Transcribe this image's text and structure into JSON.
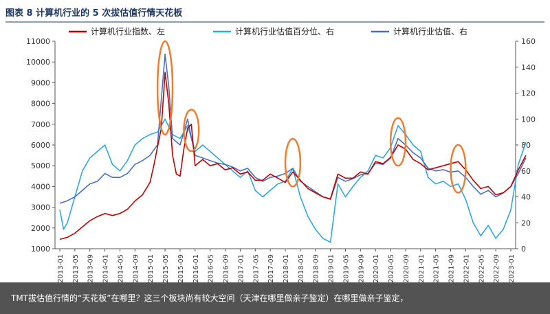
{
  "chart_data": {
    "type": "line",
    "title": "图表 8  计算机行业的 5 次拔估值行情天花板",
    "legend_placement": "top",
    "grid": false,
    "x": [
      "2013-01",
      "2013-05",
      "2013-09",
      "2014-01",
      "2014-05",
      "2014-09",
      "2015-01",
      "2015-05",
      "2015-09",
      "2016-01",
      "2016-05",
      "2016-09",
      "2017-01",
      "2017-05",
      "2017-09",
      "2018-01",
      "2018-05",
      "2018-09",
      "2019-01",
      "2019-05",
      "2019-09",
      "2020-01",
      "2020-05",
      "2020-09",
      "2021-01",
      "2021-05",
      "2021-09",
      "2022-01",
      "2022-05",
      "2022-09",
      "2023-01"
    ],
    "y_left": {
      "ticks": [
        1000,
        2000,
        3000,
        4000,
        5000,
        6000,
        7000,
        8000,
        9000,
        10000,
        11000
      ],
      "ylim": [
        1000,
        11000
      ]
    },
    "y_right": {
      "ticks": [
        0,
        20,
        40,
        60,
        80,
        100,
        120,
        140,
        160
      ],
      "ylim": [
        0,
        160
      ]
    },
    "series": [
      {
        "name": "计算机行业指数、左",
        "axis": "left",
        "color": "#c00000",
        "points": [
          [
            "2013-01",
            1450
          ],
          [
            "2013-03",
            1550
          ],
          [
            "2013-05",
            1750
          ],
          [
            "2013-07",
            2050
          ],
          [
            "2013-09",
            2350
          ],
          [
            "2013-11",
            2550
          ],
          [
            "2014-01",
            2700
          ],
          [
            "2014-03",
            2600
          ],
          [
            "2014-05",
            2700
          ],
          [
            "2014-07",
            2900
          ],
          [
            "2014-09",
            3300
          ],
          [
            "2014-11",
            3600
          ],
          [
            "2015-01",
            4200
          ],
          [
            "2015-02",
            5000
          ],
          [
            "2015-03",
            5900
          ],
          [
            "2015-04",
            6800
          ],
          [
            "2015-05",
            9500
          ],
          [
            "2015-06",
            8000
          ],
          [
            "2015-07",
            5500
          ],
          [
            "2015-08",
            4600
          ],
          [
            "2015-09",
            4500
          ],
          [
            "2015-10",
            5800
          ],
          [
            "2015-11",
            6800
          ],
          [
            "2015-12",
            7000
          ],
          [
            "2016-01",
            5000
          ],
          [
            "2016-03",
            5300
          ],
          [
            "2016-05",
            5000
          ],
          [
            "2016-07",
            5100
          ],
          [
            "2016-09",
            4800
          ],
          [
            "2016-11",
            4900
          ],
          [
            "2017-01",
            4600
          ],
          [
            "2017-03",
            4700
          ],
          [
            "2017-05",
            4300
          ],
          [
            "2017-07",
            4300
          ],
          [
            "2017-09",
            4600
          ],
          [
            "2017-11",
            4400
          ],
          [
            "2018-01",
            4200
          ],
          [
            "2018-03",
            4700
          ],
          [
            "2018-05",
            4300
          ],
          [
            "2018-07",
            3900
          ],
          [
            "2018-09",
            3700
          ],
          [
            "2018-11",
            3500
          ],
          [
            "2019-01",
            3400
          ],
          [
            "2019-03",
            4600
          ],
          [
            "2019-05",
            4400
          ],
          [
            "2019-07",
            4400
          ],
          [
            "2019-09",
            4700
          ],
          [
            "2019-11",
            4600
          ],
          [
            "2020-01",
            5200
          ],
          [
            "2020-03",
            5100
          ],
          [
            "2020-05",
            5400
          ],
          [
            "2020-07",
            6000
          ],
          [
            "2020-09",
            5800
          ],
          [
            "2020-11",
            5300
          ],
          [
            "2021-01",
            5100
          ],
          [
            "2021-03",
            4800
          ],
          [
            "2021-05",
            4900
          ],
          [
            "2021-07",
            5000
          ],
          [
            "2021-09",
            5100
          ],
          [
            "2021-11",
            5200
          ],
          [
            "2022-01",
            4800
          ],
          [
            "2022-03",
            4300
          ],
          [
            "2022-05",
            3900
          ],
          [
            "2022-07",
            4000
          ],
          [
            "2022-09",
            3600
          ],
          [
            "2022-11",
            3700
          ],
          [
            "2023-01",
            4000
          ],
          [
            "2023-03",
            4800
          ],
          [
            "2023-05",
            5500
          ]
        ]
      },
      {
        "name": "计算机行业估值百分位、右",
        "axis": "right",
        "color": "#2ea7e0",
        "points": [
          [
            "2013-01",
            30
          ],
          [
            "2013-02",
            15
          ],
          [
            "2013-03",
            20
          ],
          [
            "2013-05",
            40
          ],
          [
            "2013-07",
            60
          ],
          [
            "2013-09",
            70
          ],
          [
            "2013-11",
            75
          ],
          [
            "2014-01",
            80
          ],
          [
            "2014-03",
            65
          ],
          [
            "2014-05",
            60
          ],
          [
            "2014-07",
            68
          ],
          [
            "2014-09",
            80
          ],
          [
            "2014-11",
            85
          ],
          [
            "2015-01",
            88
          ],
          [
            "2015-03",
            90
          ],
          [
            "2015-05",
            100
          ],
          [
            "2015-07",
            88
          ],
          [
            "2015-09",
            85
          ],
          [
            "2015-11",
            95
          ],
          [
            "2016-01",
            75
          ],
          [
            "2016-03",
            80
          ],
          [
            "2016-05",
            75
          ],
          [
            "2016-07",
            70
          ],
          [
            "2016-09",
            65
          ],
          [
            "2016-11",
            60
          ],
          [
            "2017-01",
            55
          ],
          [
            "2017-03",
            60
          ],
          [
            "2017-05",
            45
          ],
          [
            "2017-07",
            40
          ],
          [
            "2017-09",
            45
          ],
          [
            "2017-11",
            50
          ],
          [
            "2018-01",
            52
          ],
          [
            "2018-03",
            62
          ],
          [
            "2018-05",
            40
          ],
          [
            "2018-07",
            25
          ],
          [
            "2018-09",
            15
          ],
          [
            "2018-11",
            8
          ],
          [
            "2019-01",
            5
          ],
          [
            "2019-03",
            50
          ],
          [
            "2019-05",
            40
          ],
          [
            "2019-07",
            48
          ],
          [
            "2019-09",
            55
          ],
          [
            "2019-11",
            60
          ],
          [
            "2020-01",
            72
          ],
          [
            "2020-03",
            70
          ],
          [
            "2020-05",
            78
          ],
          [
            "2020-07",
            95
          ],
          [
            "2020-09",
            88
          ],
          [
            "2020-11",
            80
          ],
          [
            "2021-01",
            75
          ],
          [
            "2021-03",
            55
          ],
          [
            "2021-05",
            50
          ],
          [
            "2021-07",
            52
          ],
          [
            "2021-09",
            48
          ],
          [
            "2021-11",
            50
          ],
          [
            "2022-01",
            38
          ],
          [
            "2022-03",
            20
          ],
          [
            "2022-05",
            10
          ],
          [
            "2022-07",
            18
          ],
          [
            "2022-09",
            8
          ],
          [
            "2022-11",
            15
          ],
          [
            "2023-01",
            30
          ],
          [
            "2023-03",
            65
          ],
          [
            "2023-05",
            82
          ]
        ]
      },
      {
        "name": "计算机行业估值、右",
        "axis": "right",
        "color": "#4a6fbf",
        "points": [
          [
            "2013-01",
            35
          ],
          [
            "2013-03",
            37
          ],
          [
            "2013-05",
            40
          ],
          [
            "2013-07",
            45
          ],
          [
            "2013-09",
            50
          ],
          [
            "2013-11",
            52
          ],
          [
            "2014-01",
            58
          ],
          [
            "2014-03",
            55
          ],
          [
            "2014-05",
            55
          ],
          [
            "2014-07",
            58
          ],
          [
            "2014-09",
            65
          ],
          [
            "2014-11",
            68
          ],
          [
            "2015-01",
            72
          ],
          [
            "2015-03",
            80
          ],
          [
            "2015-05",
            150
          ],
          [
            "2015-06",
            125
          ],
          [
            "2015-07",
            85
          ],
          [
            "2015-09",
            80
          ],
          [
            "2015-11",
            100
          ],
          [
            "2016-01",
            72
          ],
          [
            "2016-03",
            70
          ],
          [
            "2016-05",
            68
          ],
          [
            "2016-07",
            66
          ],
          [
            "2016-09",
            65
          ],
          [
            "2016-11",
            63
          ],
          [
            "2017-01",
            60
          ],
          [
            "2017-03",
            62
          ],
          [
            "2017-05",
            55
          ],
          [
            "2017-07",
            52
          ],
          [
            "2017-09",
            55
          ],
          [
            "2017-11",
            56
          ],
          [
            "2018-01",
            58
          ],
          [
            "2018-03",
            62
          ],
          [
            "2018-05",
            52
          ],
          [
            "2018-07",
            48
          ],
          [
            "2018-09",
            44
          ],
          [
            "2018-11",
            40
          ],
          [
            "2019-01",
            38
          ],
          [
            "2019-03",
            55
          ],
          [
            "2019-05",
            52
          ],
          [
            "2019-07",
            54
          ],
          [
            "2019-09",
            57
          ],
          [
            "2019-11",
            58
          ],
          [
            "2020-01",
            66
          ],
          [
            "2020-03",
            65
          ],
          [
            "2020-05",
            70
          ],
          [
            "2020-07",
            85
          ],
          [
            "2020-09",
            80
          ],
          [
            "2020-11",
            74
          ],
          [
            "2021-01",
            70
          ],
          [
            "2021-03",
            62
          ],
          [
            "2021-05",
            60
          ],
          [
            "2021-07",
            61
          ],
          [
            "2021-09",
            59
          ],
          [
            "2021-11",
            60
          ],
          [
            "2022-01",
            55
          ],
          [
            "2022-03",
            48
          ],
          [
            "2022-05",
            42
          ],
          [
            "2022-07",
            45
          ],
          [
            "2022-09",
            40
          ],
          [
            "2022-11",
            43
          ],
          [
            "2023-01",
            48
          ],
          [
            "2023-03",
            58
          ],
          [
            "2023-05",
            70
          ]
        ]
      }
    ],
    "annotations": [
      {
        "type": "ellipse",
        "color": "#ed7d31",
        "x_range": [
          "2015-03",
          "2015-07"
        ],
        "y_left_range": [
          6500,
          11000
        ]
      },
      {
        "type": "ellipse",
        "color": "#ed7d31",
        "x_range": [
          "2015-10",
          "2016-02"
        ],
        "y_left_range": [
          5700,
          7700
        ]
      },
      {
        "type": "ellipse",
        "color": "#ed7d31",
        "x_range": [
          "2018-01",
          "2018-05"
        ],
        "y_left_range": [
          4000,
          6300
        ]
      },
      {
        "type": "ellipse",
        "color": "#ed7d31",
        "x_range": [
          "2020-05",
          "2020-09"
        ],
        "y_left_range": [
          5000,
          7300
        ]
      },
      {
        "type": "ellipse",
        "color": "#ed7d31",
        "x_range": [
          "2021-09",
          "2022-01"
        ],
        "y_left_range": [
          3700,
          6000
        ]
      }
    ]
  },
  "caption": {
    "text": "TMT拔估值行情的“天花板”在哪里？这三个板块尚有较大空间（天津在哪里做亲子鉴定）在哪里做亲子鉴定，"
  }
}
